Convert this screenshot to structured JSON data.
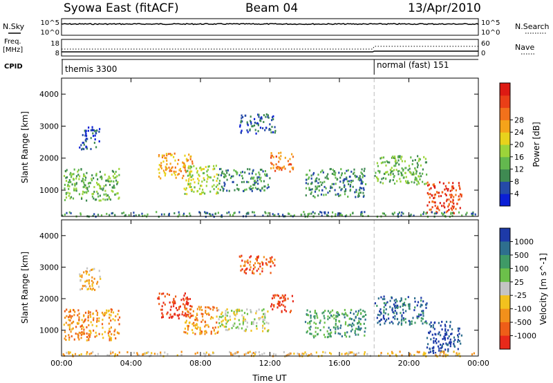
{
  "header": {
    "station": "Syowa East (fitACF)",
    "beam": "Beam 04",
    "date": "13/Apr/2010"
  },
  "status_panels": {
    "nsky_label": "N.Sky",
    "nsearch_label": "N.Search",
    "freq_label_line1": "Freq.",
    "freq_label_line2": "[MHz]",
    "nave_label": "Nave",
    "cpid_label": "CPID",
    "nsky_ticks": [
      "10^5",
      "10^0"
    ],
    "nsearch_ticks": [
      "10^5",
      "10^0"
    ],
    "freq_ticks": [
      "18",
      "8"
    ],
    "nave_ticks": [
      "60",
      "0"
    ],
    "cpid_segments": [
      {
        "label": "themis 3300",
        "start_hour": 0.0,
        "end_hour": 18.0
      },
      {
        "label": "normal (fast) 151",
        "start_hour": 18.0,
        "end_hour": 24.0
      }
    ]
  },
  "chart_data": [
    {
      "type": "heatmap",
      "name": "power",
      "xlabel": "",
      "ylabel": "Slant Range [km]",
      "x_ticks": [
        "00:00",
        "04:00",
        "08:00",
        "12:00",
        "16:00",
        "20:00",
        "00:00"
      ],
      "xlim_hours": [
        0,
        24
      ],
      "ylim": [
        180,
        4500
      ],
      "y_ticks": [
        1000,
        2000,
        3000,
        4000
      ],
      "colorbar": {
        "label": "Power [dB]",
        "ticks": [
          "4",
          "8",
          "12",
          "16",
          "20",
          "24",
          "28"
        ],
        "colors": [
          "#0b1fd6",
          "#254aa8",
          "#3f8a52",
          "#63b84e",
          "#9cd43a",
          "#e8d21c",
          "#f5a31a",
          "#f2711b",
          "#ea3f17",
          "#dd1a13"
        ]
      },
      "echo_regions": [
        {
          "t0": 0.1,
          "t1": 3.3,
          "r0": 700,
          "r1": 1700,
          "level": 3
        },
        {
          "t0": 1.0,
          "t1": 2.2,
          "r0": 2300,
          "r1": 3000,
          "level": 1
        },
        {
          "t0": 5.5,
          "t1": 7.5,
          "r0": 1400,
          "r1": 2200,
          "level": 6
        },
        {
          "t0": 7.0,
          "t1": 9.0,
          "r0": 900,
          "r1": 1800,
          "level": 4
        },
        {
          "t0": 9.0,
          "t1": 12.0,
          "r0": 1000,
          "r1": 1700,
          "level": 2
        },
        {
          "t0": 10.2,
          "t1": 12.3,
          "r0": 2800,
          "r1": 3400,
          "level": 1
        },
        {
          "t0": 12.0,
          "t1": 13.3,
          "r0": 1600,
          "r1": 2200,
          "level": 7
        },
        {
          "t0": 14.0,
          "t1": 17.5,
          "r0": 800,
          "r1": 1700,
          "level": 2
        },
        {
          "t0": 18.0,
          "t1": 21.0,
          "r0": 1200,
          "r1": 2100,
          "level": 3
        },
        {
          "t0": 21.0,
          "t1": 23.0,
          "r0": 300,
          "r1": 1300,
          "level": 8
        },
        {
          "t0": 0.0,
          "t1": 24.0,
          "r0": 200,
          "r1": 350,
          "level": 2
        }
      ]
    },
    {
      "type": "heatmap",
      "name": "velocity",
      "xlabel": "Time UT",
      "ylabel": "Slant Range [km]",
      "x_ticks": [
        "00:00",
        "04:00",
        "08:00",
        "12:00",
        "16:00",
        "20:00",
        "00:00"
      ],
      "xlim_hours": [
        0,
        24
      ],
      "ylim": [
        180,
        4500
      ],
      "y_ticks": [
        1000,
        2000,
        3000,
        4000
      ],
      "colorbar": {
        "label": "Velocity [m s^-1]",
        "ticks": [
          "1000",
          "500",
          "100",
          "25",
          "-25",
          "-100",
          "-500",
          "-1000"
        ],
        "colors": [
          "#1d3aa8",
          "#2e6f8e",
          "#3f9a66",
          "#6cc04a",
          "#c4c4c4",
          "#f2c11e",
          "#f2901b",
          "#ee5e18",
          "#e8291a"
        ]
      },
      "echo_regions": [
        {
          "t0": 0.1,
          "t1": 3.3,
          "r0": 700,
          "r1": 1700,
          "level": 6
        },
        {
          "t0": 1.0,
          "t1": 2.2,
          "r0": 2300,
          "r1": 3000,
          "level": 5
        },
        {
          "t0": 5.5,
          "t1": 7.5,
          "r0": 1400,
          "r1": 2200,
          "level": 8
        },
        {
          "t0": 7.0,
          "t1": 9.0,
          "r0": 900,
          "r1": 1800,
          "level": 6
        },
        {
          "t0": 9.0,
          "t1": 12.0,
          "r0": 1000,
          "r1": 1700,
          "level": 4
        },
        {
          "t0": 10.2,
          "t1": 12.3,
          "r0": 2800,
          "r1": 3400,
          "level": 7
        },
        {
          "t0": 12.0,
          "t1": 13.3,
          "r0": 1600,
          "r1": 2200,
          "level": 8
        },
        {
          "t0": 14.0,
          "t1": 17.5,
          "r0": 800,
          "r1": 1700,
          "level": 2
        },
        {
          "t0": 18.0,
          "t1": 21.0,
          "r0": 1200,
          "r1": 2100,
          "level": 1
        },
        {
          "t0": 21.0,
          "t1": 23.0,
          "r0": 300,
          "r1": 1300,
          "level": 0
        },
        {
          "t0": 0.0,
          "t1": 24.0,
          "r0": 200,
          "r1": 350,
          "level": 5
        }
      ]
    }
  ]
}
